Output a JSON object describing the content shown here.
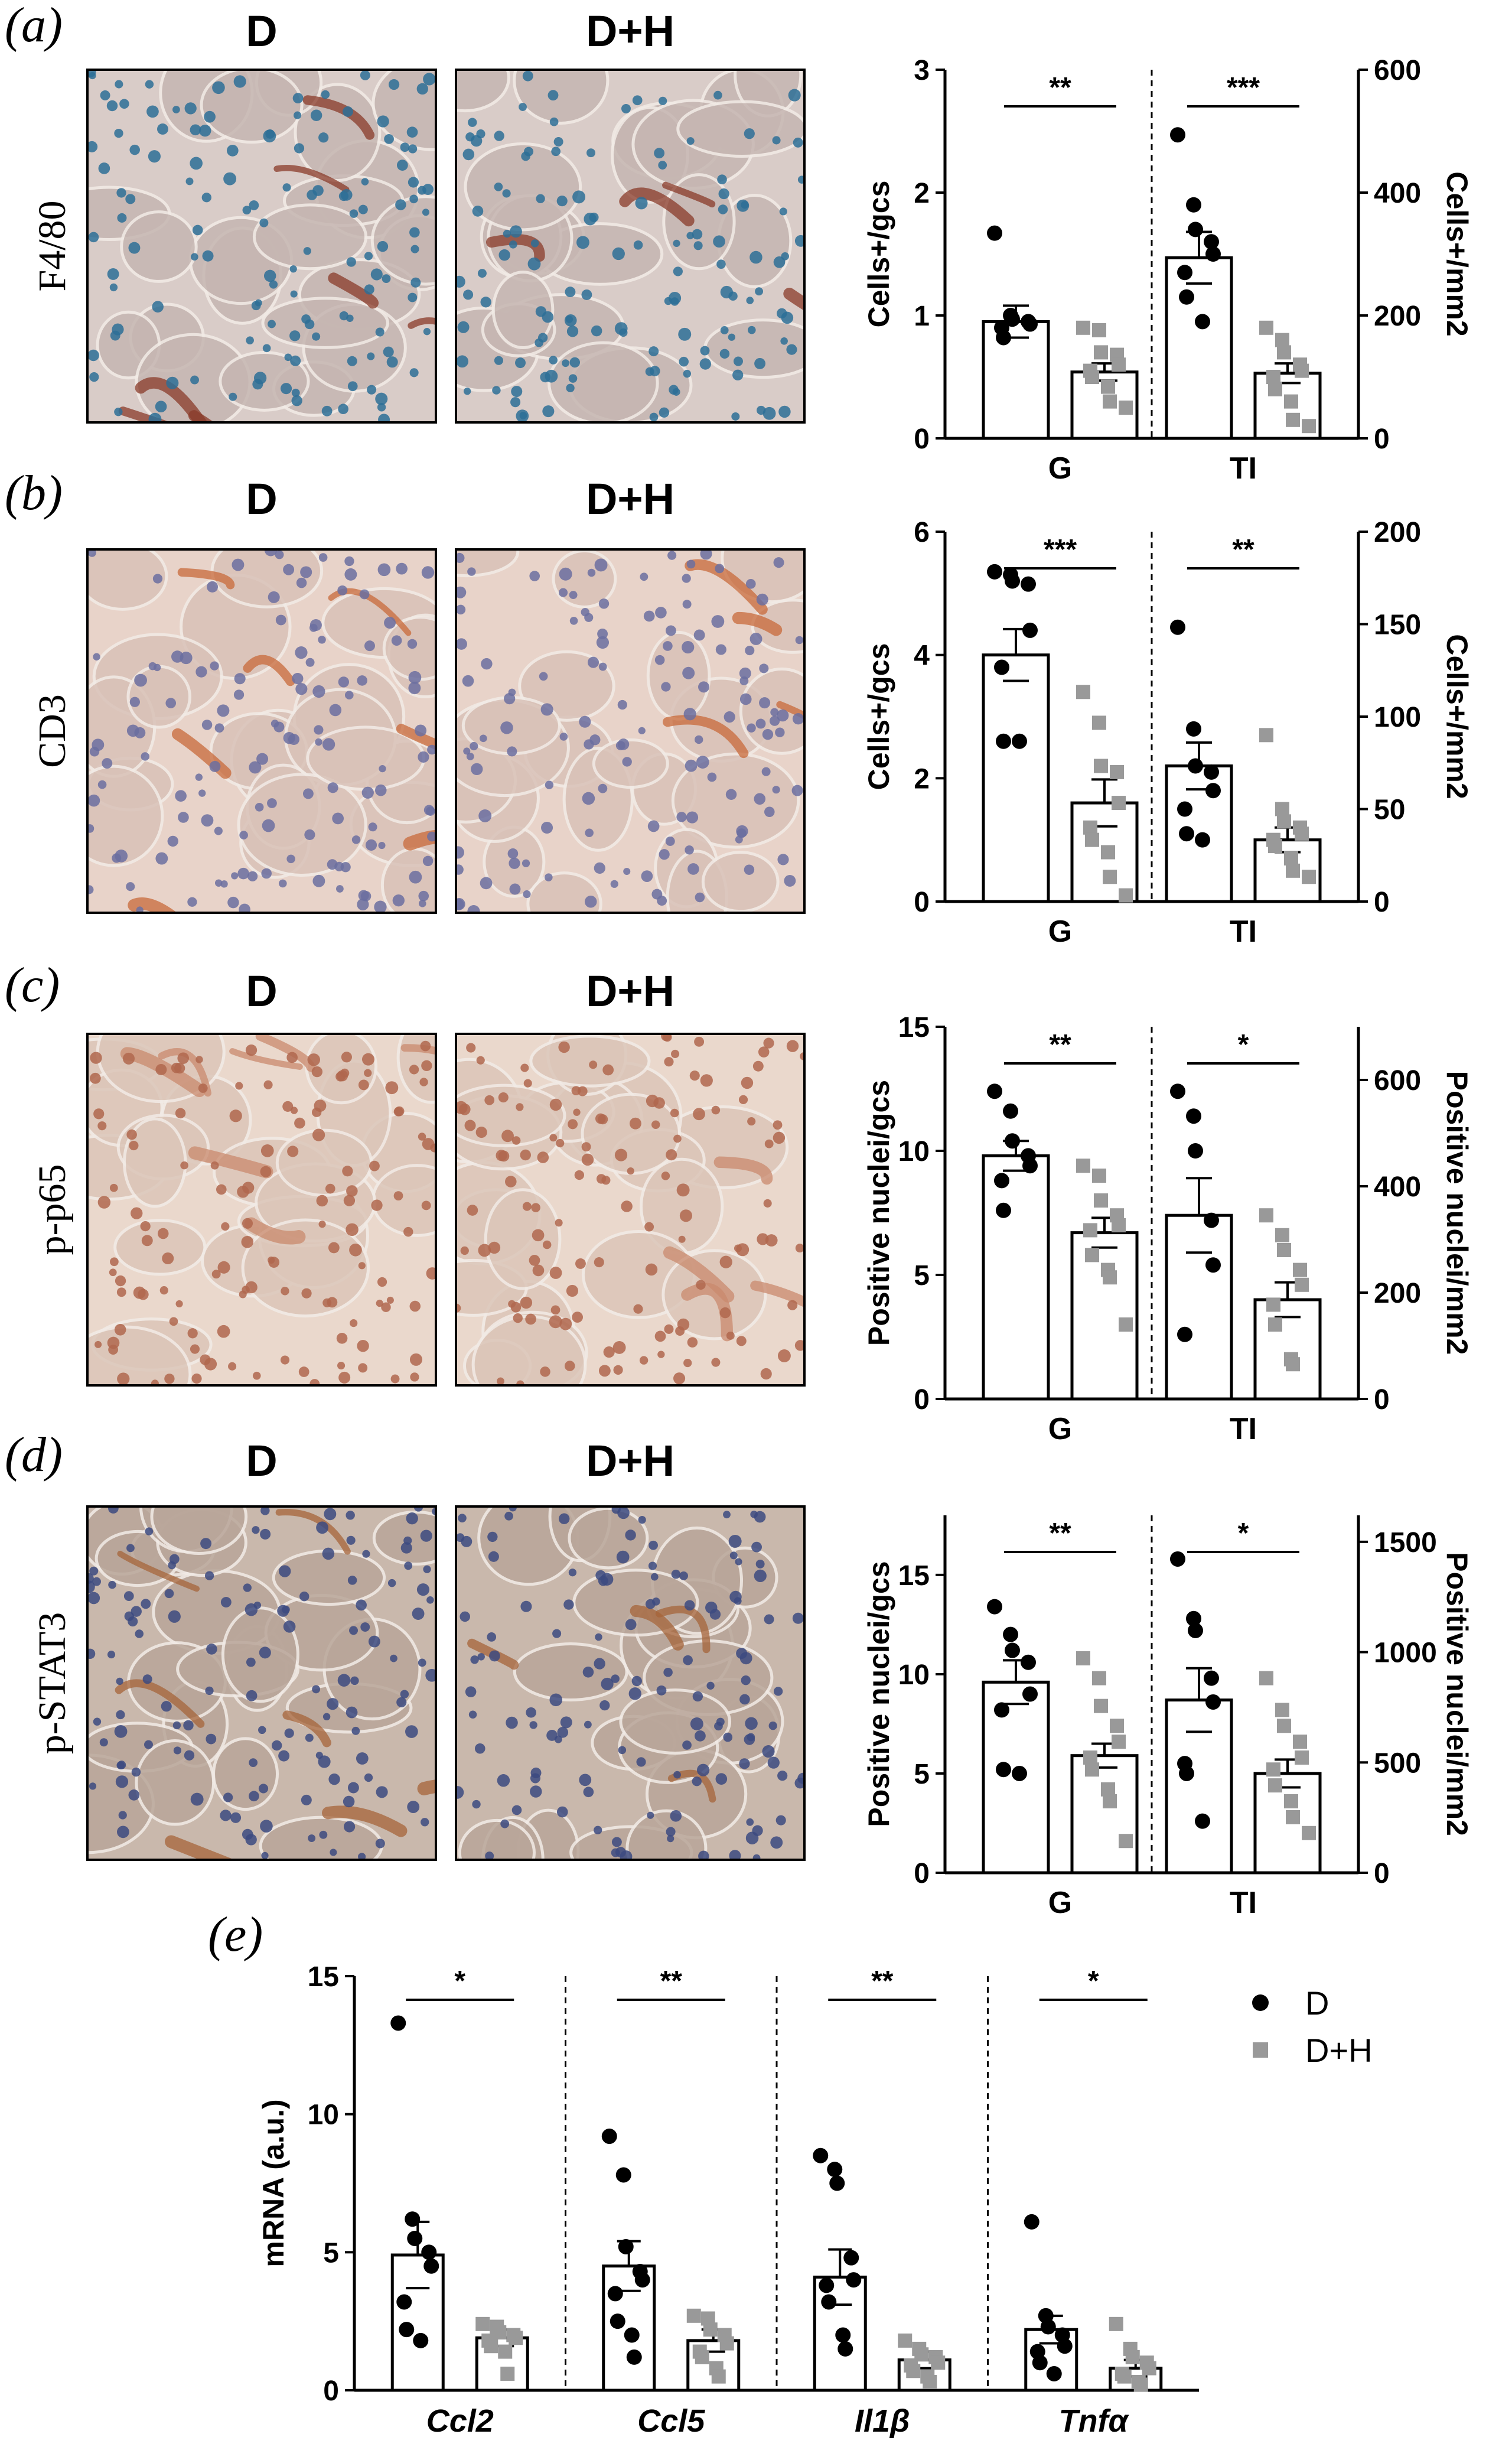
{
  "colors": {
    "d_marker": "#000000",
    "dh_marker": "#999999",
    "axis": "#000000"
  },
  "panels": [
    {
      "label": "(a)",
      "marker": "F4/80",
      "left_title": "D",
      "right_title": "D+H",
      "micro": {
        "bg": "#d9ccc8",
        "cell": "#c6b6b2",
        "nuclei": "#2d6f96",
        "stain": "#8a3b2a"
      },
      "chart_data": {
        "type": "bar",
        "categories": [
          "G",
          "TI"
        ],
        "ylabel_left": "Cells+/gcs",
        "ylabel_right": "Cells+/mm2",
        "ylim_left": [
          0,
          3
        ],
        "yticks_left": [
          0,
          1,
          2,
          3
        ],
        "ylim_right": [
          0,
          600
        ],
        "yticks_right": [
          0,
          200,
          400,
          600
        ],
        "series": [
          {
            "name": "D",
            "values": [
              0.95,
              1.47
            ],
            "sem": [
              0.13,
              0.21
            ],
            "points": [
              [
                1.67,
                1.0,
                0.97,
                0.95,
                0.93,
                0.9,
                0.82
              ],
              [
                2.47,
                1.9,
                1.7,
                1.6,
                1.5,
                1.35,
                1.15,
                0.95
              ]
            ]
          },
          {
            "name": "D+H",
            "values": [
              0.54,
              0.53
            ],
            "sem": [
              0.07,
              0.08
            ],
            "points": [
              [
                0.9,
                0.88,
                0.7,
                0.68,
                0.6,
                0.55,
                0.5,
                0.42,
                0.3,
                0.25
              ],
              [
                0.9,
                0.8,
                0.7,
                0.6,
                0.55,
                0.5,
                0.4,
                0.3,
                0.15,
                0.1
              ]
            ]
          }
        ],
        "significance": [
          "**",
          "***"
        ]
      }
    },
    {
      "label": "(b)",
      "marker": "CD3",
      "left_title": "D",
      "right_title": "D+H",
      "micro": {
        "bg": "#e8d3c9",
        "cell": "#d9c2b8",
        "nuclei": "#6b6fa0",
        "stain": "#c8693a"
      },
      "chart_data": {
        "type": "bar",
        "categories": [
          "G",
          "TI"
        ],
        "ylabel_left": "Cells+/gcs",
        "ylabel_right": "Cells+/mm2",
        "ylim_left": [
          0,
          6
        ],
        "yticks_left": [
          0,
          2,
          4,
          6
        ],
        "ylim_right": [
          0,
          200
        ],
        "yticks_right": [
          0,
          50,
          100,
          150,
          200
        ],
        "series": [
          {
            "name": "D",
            "values": [
              4.0,
              2.2
            ],
            "sem": [
              0.42,
              0.38
            ],
            "points": [
              [
                5.35,
                5.3,
                5.2,
                5.15,
                4.4,
                3.8,
                2.6,
                2.6
              ],
              [
                4.45,
                2.8,
                2.2,
                2.1,
                1.8,
                1.5,
                1.1,
                1.0
              ]
            ]
          },
          {
            "name": "D+H",
            "values": [
              1.6,
              1.0
            ],
            "sem": [
              0.38,
              0.2
            ],
            "points": [
              [
                3.4,
                2.9,
                2.2,
                2.1,
                1.6,
                1.2,
                1.0,
                0.8,
                0.4,
                0.1
              ],
              [
                2.7,
                1.5,
                1.3,
                1.2,
                1.1,
                1.0,
                0.9,
                0.7,
                0.5,
                0.4
              ]
            ]
          }
        ],
        "significance": [
          "***",
          "**"
        ]
      }
    },
    {
      "label": "(c)",
      "marker": "p-p65",
      "left_title": "D",
      "right_title": "D+H",
      "micro": {
        "bg": "#ead8cc",
        "cell": "#dcc6b9",
        "nuclei": "#b0674e",
        "stain": "#c98a6d"
      },
      "chart_data": {
        "type": "bar",
        "categories": [
          "G",
          "TI"
        ],
        "ylabel_left": "Positive nuclei/gcs",
        "ylabel_right": "Positive nuclei/mm2",
        "ylim_left": [
          0,
          15
        ],
        "yticks_left": [
          0,
          5,
          10,
          15
        ],
        "ylim_right": [
          0,
          700
        ],
        "yticks_right": [
          0,
          200,
          400,
          600
        ],
        "series": [
          {
            "name": "D",
            "values": [
              9.8,
              7.4
            ],
            "sem": [
              0.6,
              1.5
            ],
            "points": [
              [
                12.4,
                11.6,
                10.4,
                9.8,
                9.4,
                8.8,
                7.6
              ],
              [
                12.4,
                11.4,
                10.0,
                7.2,
                5.4,
                2.6
              ]
            ]
          },
          {
            "name": "D+H",
            "values": [
              6.7,
              4.0
            ],
            "sem": [
              0.6,
              0.7
            ],
            "points": [
              [
                9.4,
                9.0,
                8.0,
                7.4,
                7.0,
                6.8,
                5.8,
                5.2,
                4.9,
                3.0
              ],
              [
                7.4,
                6.6,
                6.0,
                5.2,
                4.6,
                3.8,
                3.0,
                1.6,
                1.4
              ]
            ]
          }
        ],
        "significance": [
          "**",
          "*"
        ]
      }
    },
    {
      "label": "(d)",
      "marker": "p-STAT3",
      "left_title": "D",
      "right_title": "D+H",
      "micro": {
        "bg": "#c9b8ac",
        "cell": "#b9a69a",
        "nuclei": "#3c4a80",
        "stain": "#a5643a"
      },
      "chart_data": {
        "type": "bar",
        "categories": [
          "G",
          "TI"
        ],
        "ylabel_left": "Positive nuclei/gcs",
        "ylabel_right": "Positive nuclei/mm2",
        "ylim_left": [
          0,
          18
        ],
        "yticks_left": [
          0,
          5,
          10,
          15
        ],
        "ylim_right": [
          0,
          1620
        ],
        "yticks_right": [
          0,
          500,
          1000,
          1500
        ],
        "series": [
          {
            "name": "D",
            "values": [
              9.6,
              8.7
            ],
            "sem": [
              1.1,
              1.6
            ],
            "points": [
              [
                13.4,
                12.0,
                11.2,
                10.6,
                9.0,
                8.2,
                5.2,
                5.0
              ],
              [
                15.8,
                12.8,
                12.2,
                9.8,
                8.6,
                5.5,
                5.0,
                2.6
              ]
            ]
          },
          {
            "name": "D+H",
            "values": [
              5.9,
              5.0
            ],
            "sem": [
              0.6,
              0.7
            ],
            "points": [
              [
                10.8,
                9.8,
                8.4,
                7.4,
                6.6,
                5.8,
                5.2,
                4.2,
                3.6,
                1.6
              ],
              [
                9.8,
                8.2,
                7.4,
                6.6,
                5.8,
                5.2,
                4.4,
                3.6,
                2.8,
                2.0
              ]
            ]
          }
        ],
        "significance": [
          "**",
          "*"
        ]
      }
    }
  ],
  "panel_e": {
    "label": "(e)",
    "chart_data": {
      "type": "bar",
      "categories": [
        "Ccl2",
        "Ccl5",
        "Il1β",
        "Tnfα"
      ],
      "ylabel": "mRNA (a.u.)",
      "ylim": [
        0,
        15
      ],
      "yticks": [
        0,
        5,
        10,
        15
      ],
      "series": [
        {
          "name": "D",
          "values": [
            4.9,
            4.5,
            4.1,
            2.2
          ],
          "sem": [
            1.2,
            0.9,
            1.0,
            0.5
          ],
          "points": [
            [
              13.3,
              6.2,
              5.5,
              5.0,
              4.5,
              3.2,
              2.2,
              1.8
            ],
            [
              9.2,
              7.8,
              5.2,
              4.3,
              4.0,
              3.5,
              2.5,
              2.0,
              1.2
            ],
            [
              8.5,
              8.0,
              7.5,
              4.8,
              4.0,
              3.8,
              3.2,
              2.0,
              1.5
            ],
            [
              6.1,
              2.7,
              2.3,
              2.0,
              1.6,
              1.4,
              1.0,
              0.6
            ]
          ]
        },
        {
          "name": "D+H",
          "values": [
            1.9,
            1.8,
            1.1,
            0.8
          ],
          "sem": [
            0.3,
            0.4,
            0.3,
            0.3
          ],
          "points": [
            [
              2.4,
              2.3,
              2.1,
              2.0,
              1.9,
              1.8,
              1.6,
              1.4,
              0.6
            ],
            [
              2.7,
              2.6,
              2.2,
              2.0,
              1.7,
              1.4,
              1.2,
              0.8,
              0.5
            ],
            [
              1.8,
              1.5,
              1.3,
              1.2,
              1.0,
              0.9,
              0.7,
              0.5,
              0.3
            ],
            [
              2.4,
              1.5,
              1.2,
              1.0,
              0.8,
              0.6,
              0.5,
              0.3,
              0.2
            ]
          ]
        }
      ],
      "significance": [
        "*",
        "**",
        "**",
        "*"
      ],
      "legend": [
        {
          "name": "D"
        },
        {
          "name": "D+H"
        }
      ],
      "legend_position": "top-right"
    }
  }
}
